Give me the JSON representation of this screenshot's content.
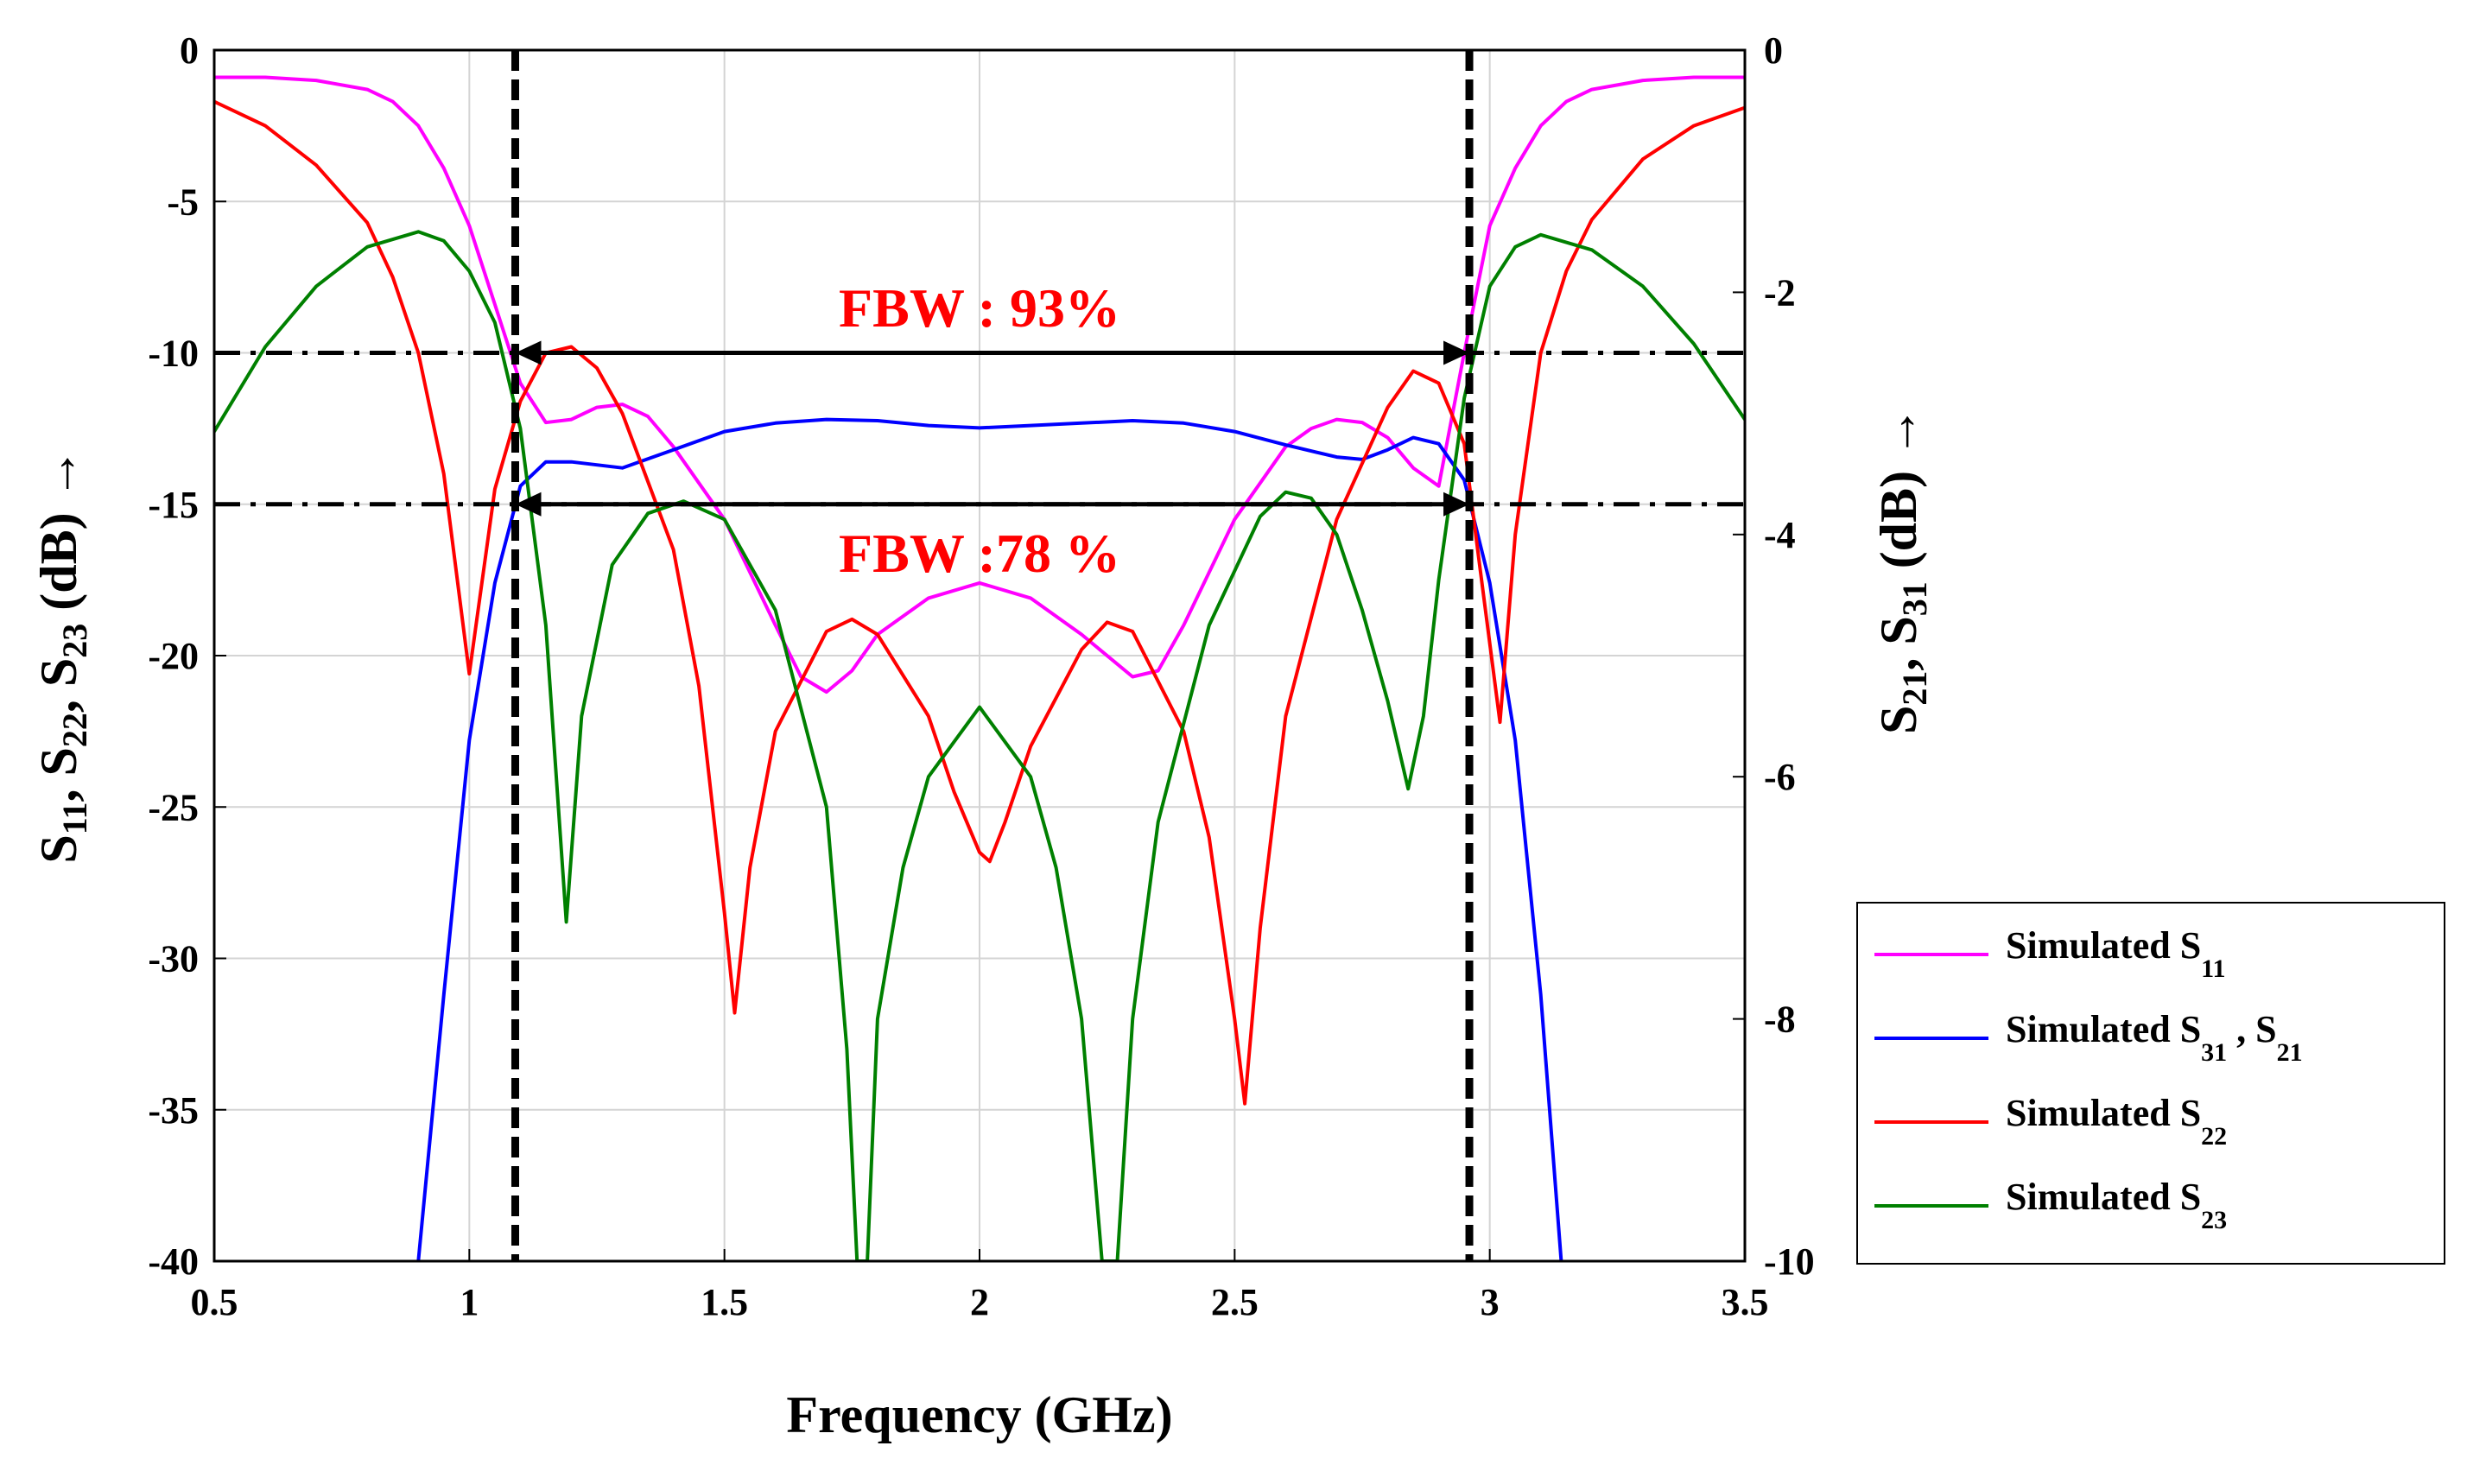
{
  "chart_data": {
    "type": "line",
    "title": "",
    "xlabel": "Frequency (GHz)",
    "ylabel_left_parts": [
      "S",
      "11",
      ", S",
      "22",
      ", S",
      "23",
      " (dB) →"
    ],
    "ylabel_right_parts": [
      "S",
      "21",
      ", S",
      "31",
      " (dB) →"
    ],
    "xlim": [
      0.5,
      3.5
    ],
    "ylim_left": [
      -40,
      0
    ],
    "ylim_right": [
      -10,
      0
    ],
    "x_ticks": [
      "0.5",
      "1",
      "1.5",
      "2",
      "2.5",
      "3",
      "3.5"
    ],
    "x_tick_values": [
      0.5,
      1,
      1.5,
      2,
      2.5,
      3,
      3.5
    ],
    "y_left_ticks": [
      "0",
      "-5",
      "-10",
      "-15",
      "-20",
      "-25",
      "-30",
      "-35",
      "-40"
    ],
    "y_left_tick_values": [
      0,
      -5,
      -10,
      -15,
      -20,
      -25,
      -30,
      -35,
      -40
    ],
    "y_right_ticks": [
      "0",
      "-2",
      "-4",
      "-6",
      "-8",
      "-10"
    ],
    "y_right_tick_values": [
      0,
      -2,
      -4,
      -6,
      -8,
      -10
    ],
    "grid": true,
    "legend_position": "right-bottom, outside plot",
    "series": [
      {
        "name": "Simulated S11",
        "legend_main": "Simulated S",
        "legend_sub": "11",
        "legend_extra": "",
        "legend_extra_sub": "",
        "axis": "left",
        "color": "#ff00ff",
        "points": [
          [
            0.5,
            -0.9
          ],
          [
            0.6,
            -0.9
          ],
          [
            0.7,
            -1.0
          ],
          [
            0.8,
            -1.3
          ],
          [
            0.85,
            -1.7
          ],
          [
            0.9,
            -2.5
          ],
          [
            0.95,
            -3.9
          ],
          [
            1.0,
            -5.8
          ],
          [
            1.05,
            -8.4
          ],
          [
            1.1,
            -11.0
          ],
          [
            1.15,
            -12.3
          ],
          [
            1.2,
            -12.2
          ],
          [
            1.25,
            -11.8
          ],
          [
            1.3,
            -11.7
          ],
          [
            1.35,
            -12.1
          ],
          [
            1.4,
            -13.1
          ],
          [
            1.5,
            -15.5
          ],
          [
            1.6,
            -19.0
          ],
          [
            1.65,
            -20.7
          ],
          [
            1.7,
            -21.2
          ],
          [
            1.75,
            -20.5
          ],
          [
            1.8,
            -19.3
          ],
          [
            1.9,
            -18.1
          ],
          [
            2.0,
            -17.6
          ],
          [
            2.1,
            -18.1
          ],
          [
            2.2,
            -19.3
          ],
          [
            2.3,
            -20.7
          ],
          [
            2.35,
            -20.5
          ],
          [
            2.4,
            -19.0
          ],
          [
            2.5,
            -15.5
          ],
          [
            2.6,
            -13.1
          ],
          [
            2.65,
            -12.5
          ],
          [
            2.7,
            -12.2
          ],
          [
            2.75,
            -12.3
          ],
          [
            2.8,
            -12.8
          ],
          [
            2.85,
            -13.8
          ],
          [
            2.9,
            -14.4
          ],
          [
            2.95,
            -10.0
          ],
          [
            3.0,
            -5.8
          ],
          [
            3.05,
            -3.9
          ],
          [
            3.1,
            -2.5
          ],
          [
            3.15,
            -1.7
          ],
          [
            3.2,
            -1.3
          ],
          [
            3.3,
            -1.0
          ],
          [
            3.4,
            -0.9
          ],
          [
            3.5,
            -0.9
          ]
        ]
      },
      {
        "name": "Simulated S31, S21",
        "legend_main": "Simulated S",
        "legend_sub": "31",
        "legend_extra": " , S",
        "legend_extra_sub": "21",
        "axis": "right",
        "color": "#0000ff",
        "points": [
          [
            0.9,
            -10.0
          ],
          [
            0.95,
            -7.8
          ],
          [
            1.0,
            -5.7
          ],
          [
            1.05,
            -4.4
          ],
          [
            1.1,
            -3.6
          ],
          [
            1.15,
            -3.4
          ],
          [
            1.2,
            -3.4
          ],
          [
            1.3,
            -3.45
          ],
          [
            1.4,
            -3.3
          ],
          [
            1.5,
            -3.15
          ],
          [
            1.6,
            -3.08
          ],
          [
            1.7,
            -3.05
          ],
          [
            1.8,
            -3.06
          ],
          [
            1.9,
            -3.1
          ],
          [
            2.0,
            -3.12
          ],
          [
            2.1,
            -3.1
          ],
          [
            2.2,
            -3.08
          ],
          [
            2.3,
            -3.06
          ],
          [
            2.4,
            -3.08
          ],
          [
            2.5,
            -3.15
          ],
          [
            2.6,
            -3.26
          ],
          [
            2.7,
            -3.36
          ],
          [
            2.75,
            -3.38
          ],
          [
            2.8,
            -3.3
          ],
          [
            2.85,
            -3.2
          ],
          [
            2.9,
            -3.25
          ],
          [
            2.95,
            -3.55
          ],
          [
            3.0,
            -4.4
          ],
          [
            3.05,
            -5.7
          ],
          [
            3.1,
            -7.8
          ],
          [
            3.14,
            -10.0
          ]
        ]
      },
      {
        "name": "Simulated S22",
        "legend_main": "Simulated S",
        "legend_sub": "22",
        "legend_extra": "",
        "legend_extra_sub": "",
        "axis": "left",
        "color": "#ff0000",
        "points": [
          [
            0.5,
            -1.7
          ],
          [
            0.6,
            -2.5
          ],
          [
            0.7,
            -3.8
          ],
          [
            0.8,
            -5.7
          ],
          [
            0.85,
            -7.5
          ],
          [
            0.9,
            -10.0
          ],
          [
            0.95,
            -14.0
          ],
          [
            1.0,
            -20.6
          ],
          [
            1.05,
            -14.5
          ],
          [
            1.1,
            -11.6
          ],
          [
            1.15,
            -10.0
          ],
          [
            1.2,
            -9.8
          ],
          [
            1.25,
            -10.5
          ],
          [
            1.3,
            -12.0
          ],
          [
            1.4,
            -16.5
          ],
          [
            1.45,
            -21.0
          ],
          [
            1.5,
            -28.5
          ],
          [
            1.52,
            -31.8
          ],
          [
            1.55,
            -27.0
          ],
          [
            1.6,
            -22.5
          ],
          [
            1.7,
            -19.2
          ],
          [
            1.75,
            -18.8
          ],
          [
            1.8,
            -19.3
          ],
          [
            1.9,
            -22.0
          ],
          [
            1.95,
            -24.5
          ],
          [
            2.0,
            -26.5
          ],
          [
            2.02,
            -26.8
          ],
          [
            2.05,
            -25.5
          ],
          [
            2.1,
            -23.0
          ],
          [
            2.2,
            -19.8
          ],
          [
            2.25,
            -18.9
          ],
          [
            2.3,
            -19.2
          ],
          [
            2.4,
            -22.5
          ],
          [
            2.45,
            -26.0
          ],
          [
            2.5,
            -32.0
          ],
          [
            2.52,
            -34.8
          ],
          [
            2.55,
            -29.0
          ],
          [
            2.6,
            -22.0
          ],
          [
            2.7,
            -15.5
          ],
          [
            2.8,
            -11.8
          ],
          [
            2.85,
            -10.6
          ],
          [
            2.9,
            -11.0
          ],
          [
            2.95,
            -13.0
          ],
          [
            2.98,
            -17.0
          ],
          [
            3.02,
            -22.2
          ],
          [
            3.05,
            -16.0
          ],
          [
            3.1,
            -10.0
          ],
          [
            3.15,
            -7.3
          ],
          [
            3.2,
            -5.6
          ],
          [
            3.3,
            -3.6
          ],
          [
            3.4,
            -2.5
          ],
          [
            3.5,
            -1.9
          ]
        ]
      },
      {
        "name": "Simulated S23",
        "legend_main": "Simulated S",
        "legend_sub": "23",
        "legend_extra": "",
        "legend_extra_sub": "",
        "axis": "left",
        "color": "#008000",
        "points": [
          [
            0.5,
            -12.6
          ],
          [
            0.6,
            -9.8
          ],
          [
            0.7,
            -7.8
          ],
          [
            0.8,
            -6.5
          ],
          [
            0.9,
            -6.0
          ],
          [
            0.95,
            -6.3
          ],
          [
            1.0,
            -7.3
          ],
          [
            1.05,
            -9.0
          ],
          [
            1.1,
            -12.5
          ],
          [
            1.15,
            -19.0
          ],
          [
            1.19,
            -28.8
          ],
          [
            1.22,
            -22.0
          ],
          [
            1.28,
            -17.0
          ],
          [
            1.35,
            -15.3
          ],
          [
            1.42,
            -14.9
          ],
          [
            1.5,
            -15.5
          ],
          [
            1.6,
            -18.5
          ],
          [
            1.7,
            -25.0
          ],
          [
            1.74,
            -33.0
          ],
          [
            1.76,
            -40.0
          ],
          [
            1.78,
            -40.0
          ],
          [
            1.8,
            -32.0
          ],
          [
            1.85,
            -27.0
          ],
          [
            1.9,
            -24.0
          ],
          [
            2.0,
            -21.7
          ],
          [
            2.1,
            -24.0
          ],
          [
            2.15,
            -27.0
          ],
          [
            2.2,
            -32.0
          ],
          [
            2.24,
            -40.0
          ],
          [
            2.27,
            -40.0
          ],
          [
            2.3,
            -32.0
          ],
          [
            2.35,
            -25.5
          ],
          [
            2.45,
            -19.0
          ],
          [
            2.55,
            -15.4
          ],
          [
            2.6,
            -14.6
          ],
          [
            2.65,
            -14.8
          ],
          [
            2.7,
            -16.0
          ],
          [
            2.75,
            -18.5
          ],
          [
            2.8,
            -21.5
          ],
          [
            2.84,
            -24.4
          ],
          [
            2.87,
            -22.0
          ],
          [
            2.9,
            -17.5
          ],
          [
            2.95,
            -11.5
          ],
          [
            3.0,
            -7.8
          ],
          [
            3.05,
            -6.5
          ],
          [
            3.1,
            -6.1
          ],
          [
            3.2,
            -6.6
          ],
          [
            3.3,
            -7.8
          ],
          [
            3.4,
            -9.7
          ],
          [
            3.5,
            -12.2
          ]
        ]
      }
    ],
    "reference_lines": {
      "horizontal_db": [
        -10,
        -15
      ],
      "vertical_ghz": [
        1.09,
        2.96
      ]
    },
    "annotations": [
      {
        "text": "FBW : 93%",
        "x": 2.0,
        "y": -8.5,
        "arrow_from": 1.09,
        "arrow_to": 2.96,
        "arrow_y": -10
      },
      {
        "text": "FBW :78 %",
        "x": 2.0,
        "y": -16.6,
        "arrow_from": 1.09,
        "arrow_to": 2.96,
        "arrow_y": -15
      }
    ]
  }
}
